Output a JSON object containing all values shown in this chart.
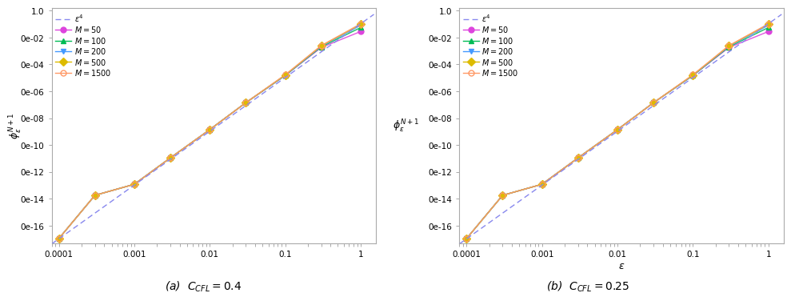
{
  "epsilon_values": [
    0.0001,
    0.0003,
    0.001,
    0.003,
    0.01,
    0.03,
    0.1,
    0.3,
    1.0
  ],
  "M_values": [
    50,
    100,
    200,
    500,
    1500
  ],
  "colors_a": [
    "#dd44dd",
    "#00bb55",
    "#4499ff",
    "#ddbb00",
    "#ff9966"
  ],
  "colors_b": [
    "#dd44dd",
    "#00bb55",
    "#4499ff",
    "#ddbb00",
    "#ff9966"
  ],
  "markers": [
    "o",
    "^",
    "v",
    "D",
    "o"
  ],
  "ref_line_color": "#8888ee",
  "panel_a": {
    "title": "(a)  $C_{CFL}=0.4$",
    "data": {
      "50": [
        1.1e-17,
        1.8e-14,
        1.2e-13,
        1.1e-11,
        1.4e-09,
        1.4e-07,
        1.5e-05,
        0.0018,
        0.028
      ],
      "100": [
        1.1e-17,
        1.8e-14,
        1.2e-13,
        1.1e-11,
        1.4e-09,
        1.4e-07,
        1.5e-05,
        0.002,
        0.055
      ],
      "200": [
        1.1e-17,
        1.8e-14,
        1.2e-13,
        1.1e-11,
        1.4e-09,
        1.4e-07,
        1.5e-05,
        0.0022,
        0.08
      ],
      "500": [
        1.1e-17,
        1.8e-14,
        1.2e-13,
        1.1e-11,
        1.4e-09,
        1.4e-07,
        1.6e-05,
        0.0024,
        0.095
      ],
      "1500": [
        1.1e-17,
        1.8e-14,
        1.2e-13,
        1.1e-11,
        1.4e-09,
        1.4e-07,
        1.7e-05,
        0.0025,
        0.105
      ]
    }
  },
  "panel_b": {
    "title": "(b)  $C_{CFL}=0.25$",
    "data": {
      "50": [
        1.1e-17,
        1.8e-14,
        1.2e-13,
        1.1e-11,
        1.4e-09,
        1.4e-07,
        1.5e-05,
        0.0018,
        0.028
      ],
      "100": [
        1.1e-17,
        1.8e-14,
        1.2e-13,
        1.1e-11,
        1.4e-09,
        1.4e-07,
        1.5e-05,
        0.002,
        0.055
      ],
      "200": [
        1.1e-17,
        1.8e-14,
        1.2e-13,
        1.1e-11,
        1.4e-09,
        1.4e-07,
        1.5e-05,
        0.0022,
        0.08
      ],
      "500": [
        1.1e-17,
        1.8e-14,
        1.2e-13,
        1.1e-11,
        1.4e-09,
        1.4e-07,
        1.6e-05,
        0.0024,
        0.095
      ],
      "1500": [
        1.1e-17,
        1.8e-14,
        1.2e-13,
        1.1e-11,
        1.4e-09,
        1.4e-07,
        1.7e-05,
        0.0025,
        0.105
      ]
    }
  },
  "ref_scale": 0.105,
  "xlim": [
    8e-05,
    1.6
  ],
  "ylim": [
    5e-18,
    1.5
  ],
  "xticks": [
    0.0001,
    0.001,
    0.01,
    0.1,
    1.0
  ],
  "yticks": [
    1e-16,
    1e-14,
    1e-12,
    1e-10,
    1e-08,
    1e-06,
    0.0001,
    0.01,
    1.0
  ],
  "bg_color": "#ffffff",
  "fig_width": 9.81,
  "fig_height": 3.66,
  "legend_labels": [
    "$\\varepsilon^4$",
    "$M=50$",
    "$M=100$",
    "$M=200$",
    "$M=500$",
    "$M=1500$"
  ]
}
